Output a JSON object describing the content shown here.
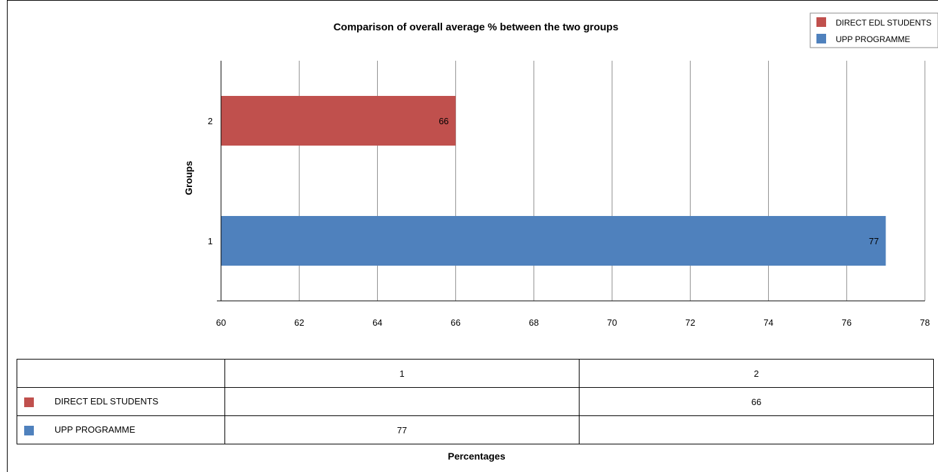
{
  "chart_data": {
    "type": "bar",
    "orientation": "horizontal",
    "title": "Comparison of overall average % between the two groups",
    "xlabel": "Percentages",
    "ylabel": "Groups",
    "categories": [
      "1",
      "2"
    ],
    "series": [
      {
        "name": "DIRECT EDL STUDENTS",
        "color": "#c0504d",
        "values": [
          null,
          66
        ]
      },
      {
        "name": "UPP PROGRAMME",
        "color": "#4f81bd",
        "values": [
          77,
          null
        ]
      }
    ],
    "xlim": [
      60,
      78
    ],
    "xticks": [
      "60",
      "62",
      "64",
      "66",
      "68",
      "70",
      "72",
      "74",
      "76",
      "78"
    ],
    "grid": "vertical",
    "legend_position": "top-right",
    "data_table": {
      "header": [
        "1",
        "2"
      ],
      "rows": [
        {
          "series": "DIRECT EDL STUDENTS",
          "color": "#c0504d",
          "cells": [
            "",
            "66"
          ]
        },
        {
          "series": "UPP PROGRAMME",
          "color": "#4f81bd",
          "cells": [
            "77",
            ""
          ]
        }
      ]
    }
  }
}
